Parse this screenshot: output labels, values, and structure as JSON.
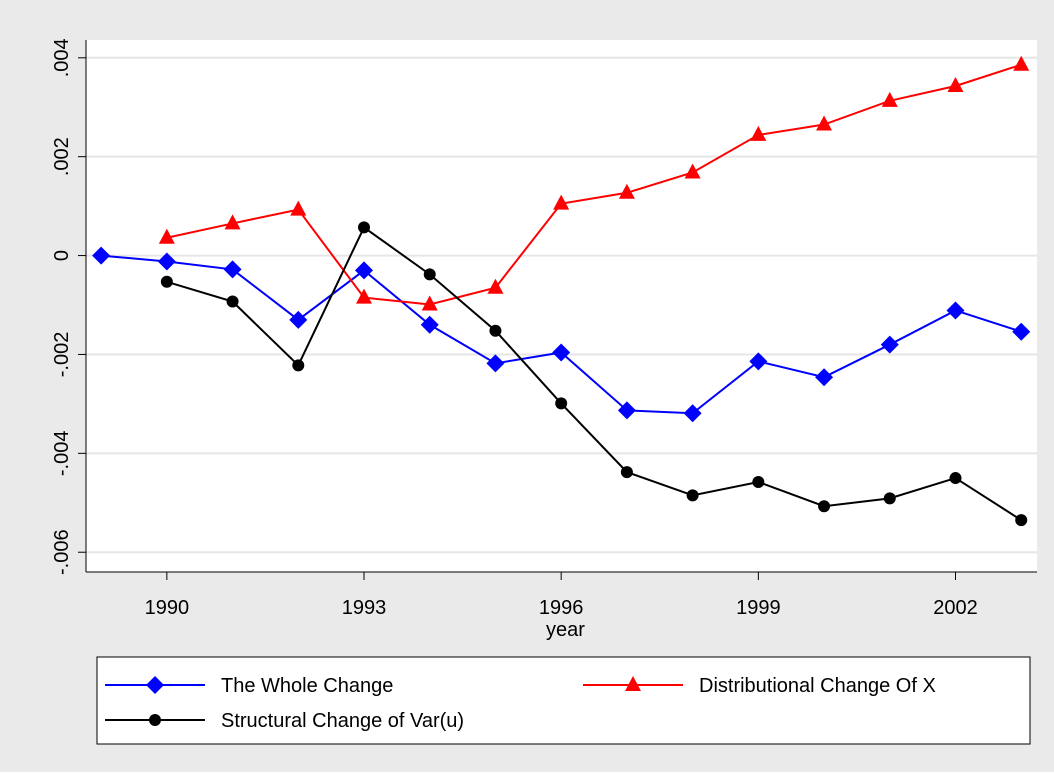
{
  "chart_data": {
    "type": "line",
    "x_label": "year",
    "x": [
      1989,
      1990,
      1991,
      1992,
      1993,
      1994,
      1995,
      1996,
      1997,
      1998,
      1999,
      2000,
      2001,
      2002,
      2003
    ],
    "series": [
      {
        "name": "The Whole Change",
        "color": "#0000ff",
        "marker": "diamond",
        "values": [
          0,
          -0.00012,
          -0.00028,
          -0.0013,
          -0.0003,
          -0.0014,
          -0.00218,
          -0.00196,
          -0.00313,
          -0.00319,
          -0.00214,
          -0.00246,
          -0.0018,
          -0.00111,
          -0.00154
        ]
      },
      {
        "name": "Distributional Change Of X",
        "color": "#ff0000",
        "marker": "triangle",
        "values": [
          null,
          0.00036,
          0.00065,
          0.00093,
          -0.00085,
          -0.00099,
          -0.00065,
          0.00105,
          0.00127,
          0.00168,
          0.00244,
          0.00265,
          0.00313,
          0.00343,
          0.00386
        ]
      },
      {
        "name": "Structural Change of Var(u)",
        "color": "#000000",
        "marker": "circle",
        "values": [
          null,
          -0.00053,
          -0.00093,
          -0.00222,
          0.00057,
          -0.00038,
          -0.00152,
          -0.00299,
          -0.00438,
          -0.00485,
          -0.00458,
          -0.00507,
          -0.00491,
          -0.0045,
          -0.00535
        ]
      }
    ],
    "xlim": [
      1988.77,
      2003.24
    ],
    "xticks": [
      1990,
      1993,
      1996,
      1999,
      2002
    ],
    "ylim": [
      -0.0064,
      0.00436
    ],
    "yticks": [
      {
        "value": -0.006,
        "label": "-.006"
      },
      {
        "value": -0.004,
        "label": "-.004"
      },
      {
        "value": -0.002,
        "label": "-.002"
      },
      0,
      {
        "value": 0.002,
        "label": ".002"
      },
      {
        "value": 0.004,
        "label": ".004"
      }
    ],
    "grid": true,
    "legend": "bottom"
  }
}
